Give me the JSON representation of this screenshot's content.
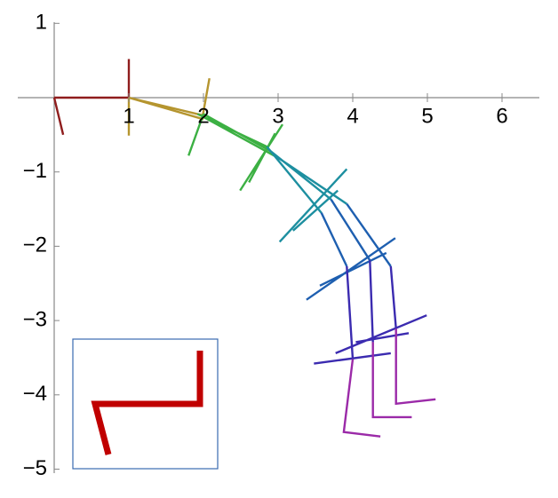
{
  "chart_data": {
    "type": "line",
    "xlim": [
      0,
      6.5
    ],
    "ylim": [
      -5,
      1
    ],
    "xticks": [
      1,
      2,
      3,
      4,
      5,
      6
    ],
    "yticks": [
      {
        "value": -5,
        "label": "−5"
      },
      {
        "value": -4,
        "label": "−4"
      },
      {
        "value": -3,
        "label": "−3"
      },
      {
        "value": -2,
        "label": "−2"
      },
      {
        "value": -1,
        "label": "−1"
      },
      1
    ],
    "series": [
      {
        "color": "#8f1d1d",
        "x": [
          0,
          1,
          null,
          0,
          0.12,
          null,
          1,
          1
        ],
        "y": [
          0,
          0,
          null,
          0,
          -0.5,
          null,
          0.52,
          0
        ]
      },
      {
        "color": "#b5952f",
        "x": [
          1,
          1,
          null,
          1,
          2,
          null,
          1,
          2,
          null,
          2.08,
          1.98
        ],
        "y": [
          0,
          -0.51,
          null,
          0,
          -0.24,
          null,
          0,
          -0.29,
          null,
          0.26,
          -0.3
        ]
      },
      {
        "color": "#3cb043",
        "x": [
          1.92,
          2.85,
          null,
          2,
          2.9,
          null,
          2,
          3,
          null,
          1.8,
          2,
          null,
          3.06,
          2.49,
          null,
          2.96,
          2.61
        ],
        "y": [
          -0.22,
          -0.66,
          null,
          -0.22,
          -0.72,
          null,
          -0.26,
          -0.81,
          null,
          -0.78,
          -0.22,
          null,
          -0.36,
          -1.25,
          null,
          -0.48,
          -1.14
        ]
      },
      {
        "color": "#1d8fa0",
        "x": [
          2.85,
          3.58,
          null,
          2.9,
          3.71,
          null,
          3,
          3.92,
          null,
          3.92,
          3.02,
          null,
          3.8,
          3.2
        ],
        "y": [
          -0.66,
          -1.55,
          null,
          -0.72,
          -1.37,
          null,
          -0.81,
          -1.43,
          null,
          -0.96,
          -1.94,
          null,
          -1.25,
          -1.79
        ]
      },
      {
        "color": "#1e5fb0",
        "x": [
          3.58,
          3.92,
          null,
          3.71,
          4.23,
          null,
          3.92,
          4.51,
          null,
          4.57,
          3.38,
          null,
          4.45,
          3.56
        ],
        "y": [
          -1.55,
          -2.27,
          null,
          -1.37,
          -2.19,
          null,
          -1.43,
          -2.27,
          null,
          -1.89,
          -2.72,
          null,
          -2.09,
          -2.53
        ]
      },
      {
        "color": "#3b2bb0",
        "x": [
          3.92,
          4,
          null,
          4.23,
          4.27,
          null,
          4.51,
          4.58,
          null,
          4.99,
          3.77,
          null,
          4.75,
          4.04,
          null,
          4.51,
          3.48
        ],
        "y": [
          -2.27,
          -3.52,
          null,
          -2.19,
          -3.29,
          null,
          -2.27,
          -3.11,
          null,
          -2.93,
          -3.44,
          null,
          -3.17,
          -3.29,
          null,
          -3.44,
          -3.58
        ]
      },
      {
        "color": "#9b2aa8",
        "x": [
          4,
          3.88,
          4.37,
          null,
          4.27,
          4.27,
          4.79,
          null,
          4.58,
          4.58,
          5.11
        ],
        "y": [
          -3.52,
          -4.5,
          -4.56,
          null,
          -3.29,
          -4.3,
          -4.3,
          null,
          -3.11,
          -4.12,
          -4.06
        ]
      }
    ]
  }
}
